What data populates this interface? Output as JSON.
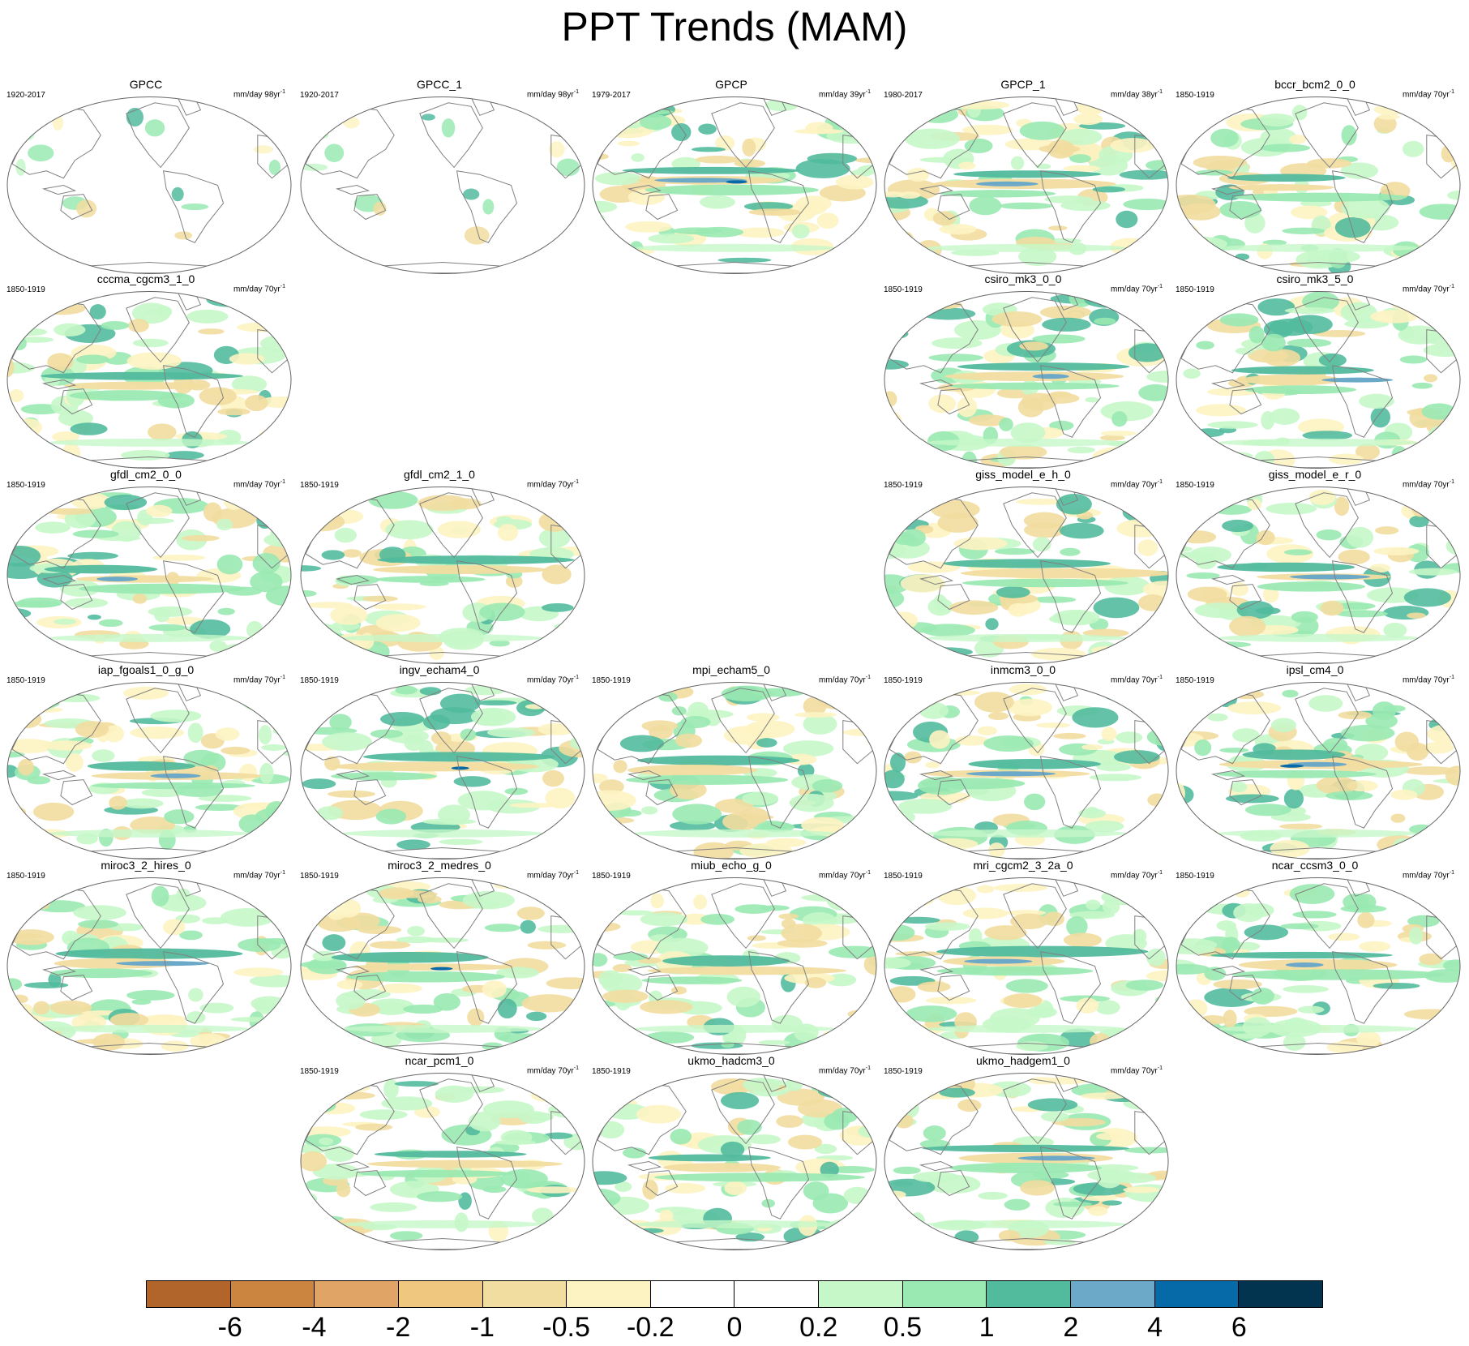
{
  "title": "PPT Trends (MAM)",
  "chart_data": {
    "type": "heatmap",
    "title": "PPT Trends (MAM)",
    "description": "Global map panels of precipitation trends, one per dataset/model",
    "panels": [
      {
        "name": "GPCC",
        "period": "1920-2017",
        "units": "mm/day 98yr",
        "mode": "land"
      },
      {
        "name": "GPCC_1",
        "period": "1920-2017",
        "units": "mm/day 98yr",
        "mode": "land"
      },
      {
        "name": "GPCP",
        "period": "1979-2017",
        "units": "mm/day 39yr",
        "mode": "full"
      },
      {
        "name": "GPCP_1",
        "period": "1980-2017",
        "units": "mm/day 38yr",
        "mode": "full"
      },
      {
        "name": "bccr_bcm2_0_0",
        "period": "1850-1919",
        "units": "mm/day 70yr",
        "mode": "full"
      },
      {
        "name": "cccma_cgcm3_1_0",
        "period": "1850-1919",
        "units": "mm/day 70yr",
        "mode": "full"
      },
      {
        "name": "csiro_mk3_0_0",
        "period": "1850-1919",
        "units": "mm/day 70yr",
        "mode": "full"
      },
      {
        "name": "csiro_mk3_5_0",
        "period": "1850-1919",
        "units": "mm/day 70yr",
        "mode": "full"
      },
      {
        "name": "gfdl_cm2_0_0",
        "period": "1850-1919",
        "units": "mm/day 70yr",
        "mode": "full"
      },
      {
        "name": "gfdl_cm2_1_0",
        "period": "1850-1919",
        "units": "mm/day 70yr",
        "mode": "full"
      },
      {
        "name": "giss_model_e_h_0",
        "period": "1850-1919",
        "units": "mm/day 70yr",
        "mode": "full"
      },
      {
        "name": "giss_model_e_r_0",
        "period": "1850-1919",
        "units": "mm/day 70yr",
        "mode": "full"
      },
      {
        "name": "iap_fgoals1_0_g_0",
        "period": "1850-1919",
        "units": "mm/day 70yr",
        "mode": "full"
      },
      {
        "name": "ingv_echam4_0",
        "period": "1850-1919",
        "units": "mm/day 70yr",
        "mode": "full"
      },
      {
        "name": "mpi_echam5_0",
        "period": "1850-1919",
        "units": "mm/day 70yr",
        "mode": "full"
      },
      {
        "name": "inmcm3_0_0",
        "period": "1850-1919",
        "units": "mm/day 70yr",
        "mode": "full"
      },
      {
        "name": "ipsl_cm4_0",
        "period": "1850-1919",
        "units": "mm/day 70yr",
        "mode": "full"
      },
      {
        "name": "miroc3_2_hires_0",
        "period": "1850-1919",
        "units": "mm/day 70yr",
        "mode": "full"
      },
      {
        "name": "miroc3_2_medres_0",
        "period": "1850-1919",
        "units": "mm/day 70yr",
        "mode": "full"
      },
      {
        "name": "miub_echo_g_0",
        "period": "1850-1919",
        "units": "mm/day 70yr",
        "mode": "full"
      },
      {
        "name": "mri_cgcm2_3_2a_0",
        "period": "1850-1919",
        "units": "mm/day 70yr",
        "mode": "full"
      },
      {
        "name": "ncar_ccsm3_0_0",
        "period": "1850-1919",
        "units": "mm/day 70yr",
        "mode": "full"
      },
      {
        "name": "ncar_pcm1_0",
        "period": "1850-1919",
        "units": "mm/day 70yr",
        "mode": "full"
      },
      {
        "name": "ukmo_hadcm3_0",
        "period": "1850-1919",
        "units": "mm/day 70yr",
        "mode": "full"
      },
      {
        "name": "ukmo_hadgem1_0",
        "period": "1850-1919",
        "units": "mm/day 70yr",
        "mode": "full"
      }
    ],
    "units_exponent": "-1",
    "colorbar": {
      "levels": [
        "-6",
        "-4",
        "-2",
        "-1",
        "-0.5",
        "-0.2",
        "0",
        "0.2",
        "0.5",
        "1",
        "2",
        "4",
        "6"
      ],
      "colors": [
        "#b2652a",
        "#cc8541",
        "#e0a566",
        "#f0c77f",
        "#f2dda0",
        "#fdf3c2",
        "#ffffff",
        "#ffffff",
        "#c6f7c9",
        "#9ae9b2",
        "#52bb9d",
        "#6ca8c8",
        "#066aa8",
        "#03344f"
      ]
    },
    "continent_color": "#808080",
    "ellipse_color": "#666666"
  }
}
